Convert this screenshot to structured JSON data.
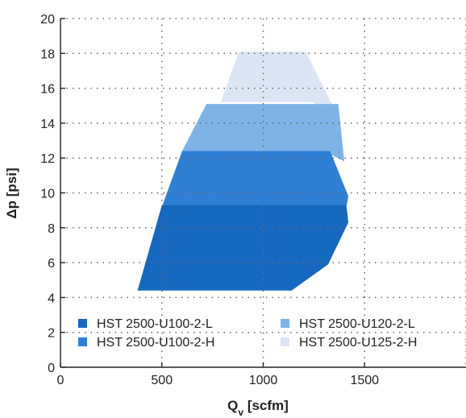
{
  "chart_data": {
    "type": "area",
    "xlabel": "Q",
    "xlabel_sub": "v",
    "xlabel_unit": " [scfm]",
    "ylabel": "Δp [psi]",
    "xlim": [
      0,
      2000
    ],
    "ylim": [
      0,
      20
    ],
    "xticks": [
      0,
      500,
      1000,
      1500
    ],
    "yticks": [
      0,
      2,
      4,
      6,
      8,
      10,
      12,
      14,
      16,
      18,
      20
    ],
    "grid": true,
    "legend_position": "bottom",
    "series": [
      {
        "name": "HST 2500-U125-2-H",
        "color": "#dbe6f5",
        "polygon": [
          [
            790,
            15.2
          ],
          [
            880,
            18.1
          ],
          [
            1210,
            18.1
          ],
          [
            1380,
            14.1
          ],
          [
            1360,
            13.2
          ],
          [
            1250,
            15.2
          ]
        ]
      },
      {
        "name": "HST 2500-U120-2-L",
        "color": "#7fb3e8",
        "polygon": [
          [
            600,
            12.4
          ],
          [
            720,
            15.1
          ],
          [
            1370,
            15.1
          ],
          [
            1400,
            11.8
          ],
          [
            1300,
            12.4
          ]
        ]
      },
      {
        "name": "HST 2500-U100-2-H",
        "color": "#2f80d4",
        "polygon": [
          [
            600,
            12.4
          ],
          [
            1330,
            12.4
          ],
          [
            1420,
            9.8
          ],
          [
            1410,
            9.2
          ],
          [
            500,
            9.2
          ]
        ]
      },
      {
        "name": "HST 2500-U100-2-L",
        "color": "#1668be",
        "polygon": [
          [
            380,
            4.4
          ],
          [
            500,
            9.3
          ],
          [
            1410,
            9.3
          ],
          [
            1420,
            8.3
          ],
          [
            1320,
            5.9
          ],
          [
            1140,
            4.4
          ]
        ]
      }
    ],
    "legend": [
      {
        "label": "HST 2500-U100-2-L",
        "color": "#1668be"
      },
      {
        "label": "HST 2500-U120-2-L",
        "color": "#7fb3e8"
      },
      {
        "label": "HST 2500-U100-2-H",
        "color": "#2f80d4"
      },
      {
        "label": "HST 2500-U125-2-H",
        "color": "#dbe6f5"
      }
    ]
  }
}
